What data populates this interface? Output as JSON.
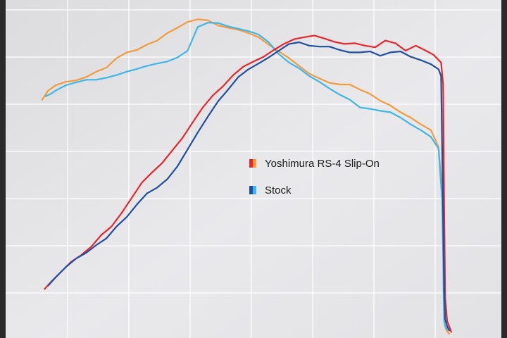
{
  "chart_data": {
    "type": "line",
    "title": "",
    "xlabel": "",
    "ylabel": "",
    "xlim": [
      0,
      100
    ],
    "ylim": [
      0,
      100
    ],
    "grid": true,
    "legend": {
      "placement": "center",
      "entries": [
        {
          "label": "Yoshimura RS-4 Slip-On",
          "colors": [
            "#e8252b",
            "#f29a3c"
          ]
        },
        {
          "label": "Stock",
          "colors": [
            "#1f4fa0",
            "#3fb6e8"
          ]
        }
      ]
    },
    "series": [
      {
        "name": "",
        "color": "#f29a3c",
        "x": [
          8.3,
          9.5,
          11,
          13,
          15,
          17,
          19,
          21,
          23,
          25,
          27,
          29,
          31,
          33,
          35,
          37,
          39,
          41,
          43,
          45,
          47,
          49,
          51,
          53,
          55,
          57,
          59,
          61,
          63,
          65,
          67,
          69,
          71,
          73,
          75,
          77,
          79,
          81,
          83,
          85,
          86.5,
          87.3,
          87.5,
          87.6,
          87.7,
          88,
          88.6
        ],
        "y": [
          70.5,
          73.2,
          74.8,
          75.8,
          76.2,
          77.2,
          78.8,
          80.0,
          82.8,
          84.5,
          85.2,
          86.8,
          88.0,
          90.2,
          91.8,
          93.5,
          94.3,
          94.0,
          92.5,
          91.8,
          91.2,
          90.2,
          89.0,
          86.8,
          84.8,
          82.8,
          80.5,
          78.2,
          76.8,
          75.5,
          75.0,
          75.0,
          73.5,
          72.2,
          70.2,
          68.8,
          66.8,
          65.2,
          63.2,
          61.5,
          56.5,
          41.0,
          25.0,
          12.0,
          4.0,
          2.5,
          1.2
        ]
      },
      {
        "name": "",
        "color": "#3fb6e8",
        "x": [
          9.0,
          10,
          11,
          13,
          15,
          17,
          19,
          21,
          23,
          25,
          27,
          29,
          31,
          33,
          35,
          37,
          39,
          41,
          43,
          45,
          47,
          49,
          51,
          53,
          55,
          57,
          59,
          61,
          63,
          65,
          67,
          69,
          71,
          73,
          75,
          77,
          79,
          81,
          83,
          85,
          86.5,
          87.2,
          87.4,
          87.5,
          87.6,
          87.8,
          88.2
        ],
        "y": [
          71.5,
          72.2,
          73.2,
          74.8,
          75.6,
          76.4,
          76.4,
          77.0,
          77.8,
          78.8,
          79.6,
          80.5,
          81.2,
          81.8,
          83.0,
          85.0,
          92.0,
          93.3,
          93.2,
          92.2,
          91.5,
          90.8,
          89.8,
          87.5,
          84.0,
          81.5,
          79.8,
          77.5,
          75.8,
          73.8,
          72.0,
          70.5,
          68.2,
          67.8,
          67.2,
          66.8,
          65.2,
          63.2,
          61.5,
          59.5,
          56.0,
          41.0,
          24.0,
          12.0,
          5.0,
          3.5,
          2.5
        ]
      },
      {
        "name": "",
        "color": "#e8252b",
        "x": [
          8.8,
          10,
          12,
          14,
          16,
          18,
          20,
          22,
          24,
          26,
          28,
          30,
          32,
          34,
          36,
          38,
          40,
          42,
          44,
          46,
          48,
          50,
          52,
          54,
          56,
          58,
          60,
          62,
          64,
          66,
          68,
          70,
          72,
          74,
          76,
          78,
          80,
          82,
          84,
          85.5,
          87,
          87.4,
          87.6,
          87.8,
          88.2,
          88.6,
          89.0
        ],
        "y": [
          14.5,
          16.5,
          19.5,
          22.5,
          24.5,
          27.0,
          30.5,
          33.0,
          37.0,
          41.5,
          46.0,
          49.0,
          51.8,
          55.5,
          59.2,
          63.8,
          68.2,
          71.8,
          74.5,
          77.8,
          80.3,
          81.8,
          83.2,
          85.2,
          87.0,
          88.4,
          89.0,
          89.5,
          88.6,
          87.6,
          87.0,
          87.2,
          86.5,
          86.0,
          88.0,
          87.2,
          85.0,
          86.5,
          85.0,
          83.8,
          81.5,
          75.0,
          40.0,
          12.0,
          5.0,
          3.5,
          1.8
        ]
      },
      {
        "name": "",
        "color": "#1f4fa0",
        "x": [
          9.5,
          11,
          13,
          15,
          17,
          19,
          21,
          23,
          25,
          27,
          29,
          31,
          33,
          35,
          37,
          39,
          41,
          43,
          45,
          47,
          49,
          51,
          53,
          55,
          57,
          59,
          61,
          63,
          65,
          67,
          69,
          71,
          73,
          75,
          77,
          79,
          81,
          83,
          85,
          86.5,
          87.0,
          87.3,
          87.6,
          87.8,
          88.2,
          88.6
        ],
        "y": [
          15.5,
          18.0,
          21.0,
          23.5,
          25.2,
          27.5,
          29.5,
          33.0,
          35.8,
          39.5,
          42.8,
          44.5,
          47.0,
          50.8,
          55.8,
          60.8,
          65.5,
          70.0,
          73.5,
          77.2,
          79.5,
          81.2,
          83.0,
          85.0,
          87.0,
          87.5,
          86.5,
          86.2,
          86.2,
          85.2,
          84.5,
          84.5,
          84.8,
          83.5,
          84.5,
          84.8,
          83.2,
          82.2,
          81.0,
          79.5,
          77.5,
          46.0,
          14.0,
          5.5,
          3.5,
          2.2
        ]
      }
    ]
  }
}
